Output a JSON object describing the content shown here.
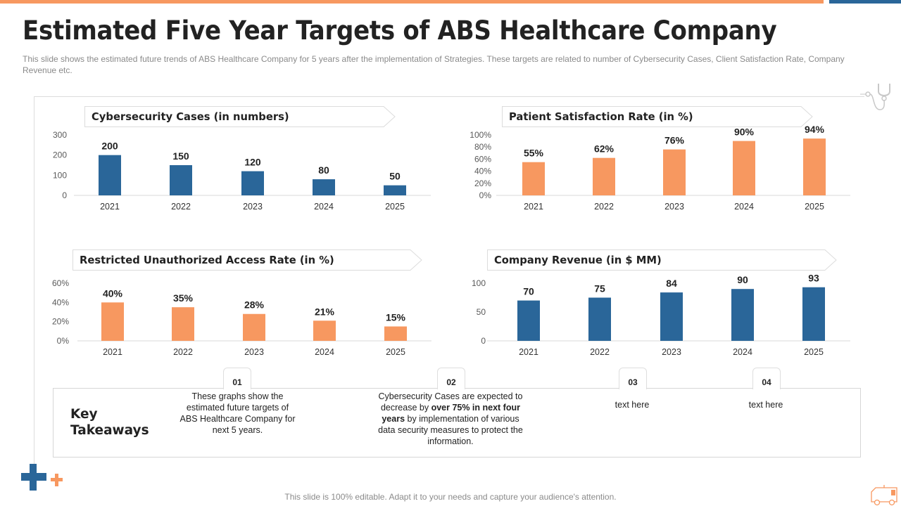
{
  "page": {
    "title": "Estimated Five Year Targets of ABS Healthcare Company",
    "subtitle": "This slide shows the estimated future trends of ABS Healthcare Company for 5 years after the implementation of Strategies. These targets are related to number of Cybersecurity Cases, Client Satisfaction Rate, Company Revenue etc.",
    "footer": "This slide is 100% editable. Adapt it to your needs and capture your audience's attention.",
    "colors": {
      "blue": "#2A6699",
      "orange": "#F79860",
      "accent_top_orange": "#F79860",
      "accent_top_blue": "#2A6699"
    }
  },
  "chart_data": [
    {
      "type": "bar",
      "title": "Cybersecurity Cases (in numbers)",
      "categories": [
        "2021",
        "2022",
        "2023",
        "2024",
        "2025"
      ],
      "values": [
        200,
        150,
        120,
        80,
        50
      ],
      "value_labels": [
        "200",
        "150",
        "120",
        "80",
        "50"
      ],
      "yticks": [
        "0",
        "100",
        "200",
        "300"
      ],
      "ylim": [
        0,
        300
      ],
      "color": "#2A6699",
      "xlabel": "",
      "ylabel": "",
      "grid": false
    },
    {
      "type": "bar",
      "title": "Patient Satisfaction Rate (in %)",
      "categories": [
        "2021",
        "2022",
        "2023",
        "2024",
        "2025"
      ],
      "values": [
        55,
        62,
        76,
        90,
        94
      ],
      "value_labels": [
        "55%",
        "62%",
        "76%",
        "90%",
        "94%"
      ],
      "yticks": [
        "0%",
        "20%",
        "40%",
        "60%",
        "80%",
        "100%"
      ],
      "ylim": [
        0,
        100
      ],
      "color": "#F79860",
      "xlabel": "",
      "ylabel": "",
      "grid": false
    },
    {
      "type": "bar",
      "title": "Restricted Unauthorized Access Rate (in %)",
      "categories": [
        "2021",
        "2022",
        "2023",
        "2024",
        "2025"
      ],
      "values": [
        40,
        35,
        28,
        21,
        15
      ],
      "value_labels": [
        "40%",
        "35%",
        "28%",
        "21%",
        "15%"
      ],
      "yticks": [
        "0%",
        "20%",
        "40%",
        "60%"
      ],
      "ylim": [
        0,
        60
      ],
      "color": "#F79860",
      "xlabel": "",
      "ylabel": "",
      "grid": false
    },
    {
      "type": "bar",
      "title": "Company Revenue (in $ MM)",
      "categories": [
        "2021",
        "2022",
        "2023",
        "2024",
        "2025"
      ],
      "values": [
        70,
        75,
        84,
        90,
        93
      ],
      "value_labels": [
        "70",
        "75",
        "84",
        "90",
        "93"
      ],
      "yticks": [
        "0",
        "50",
        "100"
      ],
      "ylim": [
        0,
        100
      ],
      "color": "#2A6699",
      "xlabel": "",
      "ylabel": "",
      "grid": false
    }
  ],
  "takeaways": {
    "title_line1": "Key",
    "title_line2": "Takeaways",
    "items": [
      {
        "num": "01",
        "text": "These graphs show the estimated future targets of ABS Healthcare Company for next 5 years."
      },
      {
        "num": "02",
        "text_before": "Cybersecurity Cases are expected to decrease by ",
        "text_bold": "over 75% in next four years",
        "text_after": " by implementation of various data security measures to protect the information."
      },
      {
        "num": "03",
        "text": "text here"
      },
      {
        "num": "04",
        "text": "text here"
      }
    ]
  },
  "icons": {
    "top_right": "stethoscope-icon",
    "bottom_left": "medical-cross-icon",
    "bottom_right": "ambulance-icon"
  }
}
